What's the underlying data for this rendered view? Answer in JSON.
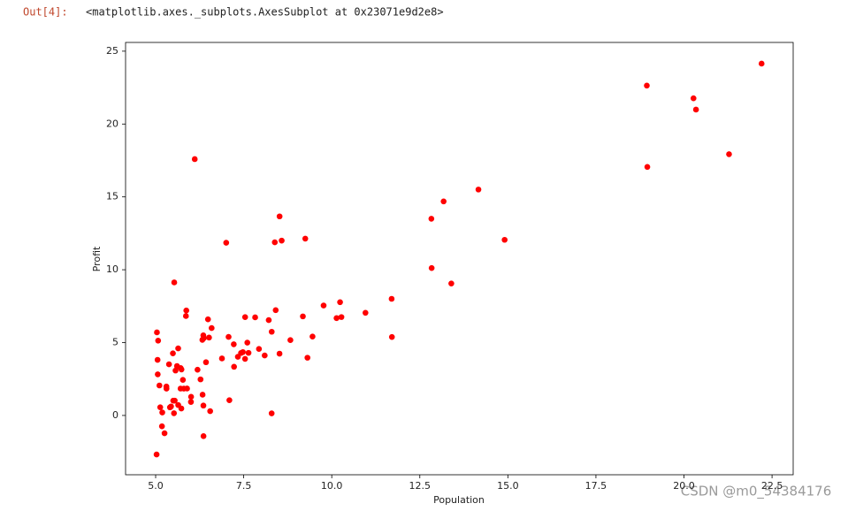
{
  "prompt": "Out[4]:",
  "output_text": "<matplotlib.axes._subplots.AxesSubplot at 0x23071e9d2e8>",
  "watermark": "CSDN @m0_54384176",
  "chart_data": {
    "type": "scatter",
    "x_label": "Population",
    "y_label": "Profit",
    "color": "#ff0000",
    "xlim": [
      4.146,
      23.1
    ],
    "ylim": [
      -4.07,
      25.6
    ],
    "xticks": [
      {
        "value": 5,
        "label": "5.0"
      },
      {
        "value": 7.5,
        "label": "7.5"
      },
      {
        "value": 10,
        "label": "10.0"
      },
      {
        "value": 12.5,
        "label": "12.5"
      },
      {
        "value": 15,
        "label": "15.0"
      },
      {
        "value": 17.5,
        "label": "17.5"
      },
      {
        "value": 20,
        "label": "20.0"
      },
      {
        "value": 22.5,
        "label": "22.5"
      }
    ],
    "yticks": [
      0,
      5,
      10,
      15,
      20,
      25
    ],
    "x": [
      6.1101,
      5.5277,
      8.5186,
      7.0032,
      5.8598,
      8.3829,
      7.4764,
      8.5781,
      6.4862,
      5.0546,
      5.7107,
      14.164,
      5.734,
      8.4084,
      5.6407,
      5.3794,
      6.3654,
      5.1301,
      6.4296,
      7.0708,
      6.1891,
      20.27,
      5.4901,
      6.3261,
      5.5649,
      18.945,
      12.828,
      10.957,
      13.176,
      22.203,
      5.2524,
      6.5894,
      9.2482,
      5.8918,
      8.2111,
      7.9334,
      8.0959,
      5.6063,
      12.836,
      6.3534,
      5.4069,
      6.8825,
      11.708,
      5.7737,
      7.8247,
      7.0931,
      5.0702,
      5.8014,
      11.7,
      5.5416,
      7.5402,
      5.3077,
      7.4239,
      7.6031,
      6.3328,
      6.3589,
      6.2742,
      5.6397,
      9.3102,
      9.4536,
      8.8254,
      5.1793,
      21.279,
      14.908,
      18.959,
      7.2182,
      8.2951,
      10.236,
      5.4994,
      20.341,
      10.136,
      7.3345,
      6.0062,
      7.2259,
      5.0269,
      6.5479,
      7.5386,
      5.0365,
      10.274,
      5.1077,
      5.7292,
      5.1884,
      6.3557,
      9.7687,
      6.5159,
      8.5172,
      9.1802,
      6.002,
      5.5204,
      5.0594,
      5.7077,
      7.6366,
      5.8707,
      5.3054,
      8.2934,
      13.394,
      5.4369
    ],
    "values": [
      17.592,
      9.1302,
      13.662,
      11.854,
      6.8233,
      11.886,
      4.3483,
      12,
      6.5987,
      3.8166,
      3.2522,
      15.505,
      3.1551,
      7.2258,
      0.71618,
      3.5129,
      5.3048,
      0.56077,
      3.6518,
      5.3893,
      3.1386,
      21.767,
      4.263,
      5.1875,
      3.0825,
      22.638,
      13.501,
      7.0467,
      14.692,
      24.147,
      -1.22,
      5.9966,
      12.134,
      1.8495,
      6.5426,
      4.5623,
      4.1164,
      3.3928,
      10.117,
      5.4974,
      0.55657,
      3.9115,
      5.3854,
      2.4406,
      6.7318,
      1.0463,
      5.1337,
      1.844,
      8.0043,
      1.0179,
      6.7504,
      1.8396,
      4.2885,
      4.9981,
      1.4233,
      -1.4211,
      2.4756,
      4.6042,
      3.9624,
      5.4141,
      5.1694,
      -0.74279,
      17.929,
      12.054,
      17.054,
      4.8852,
      5.7442,
      7.7754,
      1.0173,
      20.992,
      6.6799,
      4.0259,
      1.2784,
      3.3411,
      -2.6807,
      0.29678,
      3.8845,
      5.7014,
      6.7526,
      2.0576,
      0.47953,
      0.20421,
      0.67861,
      7.5435,
      5.3436,
      4.2415,
      6.7981,
      0.92695,
      0.152,
      2.8214,
      1.8451,
      4.2959,
      7.2029,
      1.9869,
      0.14454,
      9.0551,
      0.61705
    ]
  }
}
